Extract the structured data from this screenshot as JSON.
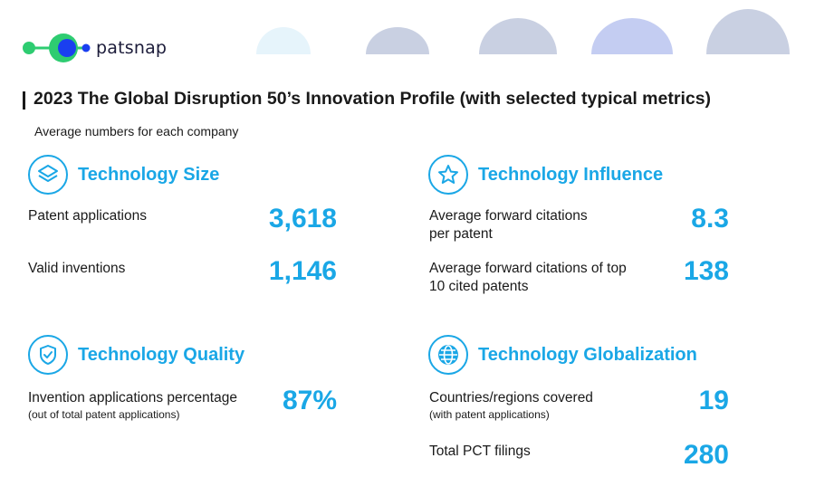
{
  "logo": {
    "text": "patsnap"
  },
  "title": "2023 The Global Disruption 50’s Innovation Profile (with selected typical metrics)",
  "subtitle": "Average numbers for each company",
  "colors": {
    "accent": "#1aa7e6",
    "text": "#1a1a1a",
    "logo_green": "#2ecc71",
    "logo_blue": "#1a3ff0"
  },
  "sections": {
    "size": {
      "heading": "Technology Size",
      "icon": "layers-icon",
      "metrics": [
        {
          "label": "Patent applications",
          "value": "3,618"
        },
        {
          "label": "Valid inventions",
          "value": "1,146"
        }
      ]
    },
    "influence": {
      "heading": "Technology Influence",
      "icon": "star-icon",
      "metrics": [
        {
          "label_line1": "Average forward citations",
          "label_line2": "per patent",
          "value": "8.3"
        },
        {
          "label_line1": "Average forward citations of top",
          "label_line2": "10 cited patents",
          "value": "138"
        }
      ]
    },
    "quality": {
      "heading": "Technology Quality",
      "icon": "shield-check-icon",
      "metrics": [
        {
          "label": "Invention applications percentage",
          "note": "(out of total patent applications)",
          "value": "87%"
        }
      ]
    },
    "globalization": {
      "heading": "Technology Globalization",
      "icon": "globe-icon",
      "metrics": [
        {
          "label": "Countries/regions covered",
          "note": "(with patent applications)",
          "value": "19"
        },
        {
          "label": "Total PCT filings",
          "value": "280"
        }
      ]
    }
  }
}
